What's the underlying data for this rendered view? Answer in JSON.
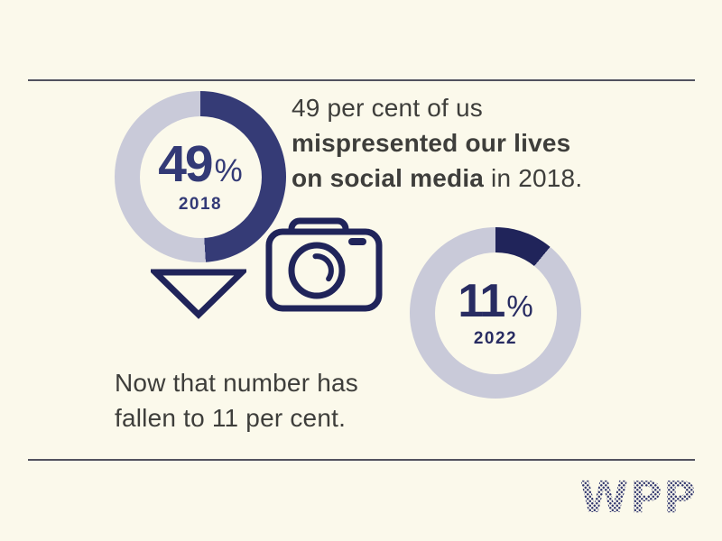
{
  "page": {
    "background_color": "#fbf9eb",
    "rule_color": "#52525f",
    "text_color": "#3e3e3b"
  },
  "colors": {
    "navy": "#333a76",
    "dark_navy": "#20245a",
    "lavender": "#c9cad9",
    "cream": "#fbf9eb"
  },
  "chart_data": [
    {
      "type": "pie",
      "subtype": "donut",
      "title": "2018",
      "center_value": "49",
      "unit": "%",
      "year_label": "2018",
      "values": [
        49,
        51
      ],
      "segment_colors": [
        "#353b76",
        "#c9cad9"
      ],
      "start_angle_deg": 0,
      "direction": "clockwise",
      "legend": "none"
    },
    {
      "type": "pie",
      "subtype": "donut",
      "title": "2022",
      "center_value": "11",
      "unit": "%",
      "year_label": "2022",
      "values": [
        11,
        89
      ],
      "segment_colors": [
        "#20245a",
        "#c9cad9"
      ],
      "start_angle_deg": 0,
      "direction": "clockwise",
      "legend": "none"
    }
  ],
  "texts": {
    "statement_2018": {
      "lines": [
        [
          {
            "t": "49 per cent of us",
            "b": false
          }
        ],
        [
          {
            "t": "mispresented our lives",
            "b": true
          }
        ],
        [
          {
            "t": "on social media",
            "b": true
          },
          {
            "t": " in 2018.",
            "b": false
          }
        ]
      ]
    },
    "statement_2022": {
      "lines": [
        [
          {
            "t": "Now that number has",
            "b": false
          }
        ],
        [
          {
            "t": "fallen to 11 per cent.",
            "b": false
          }
        ]
      ]
    }
  },
  "icons": {
    "triangle_down": "downward arrow triangle (outline)",
    "camera": "camera (outline)"
  },
  "brand": {
    "logo_text": "WPP",
    "logo_dot_color": "#33386f"
  }
}
